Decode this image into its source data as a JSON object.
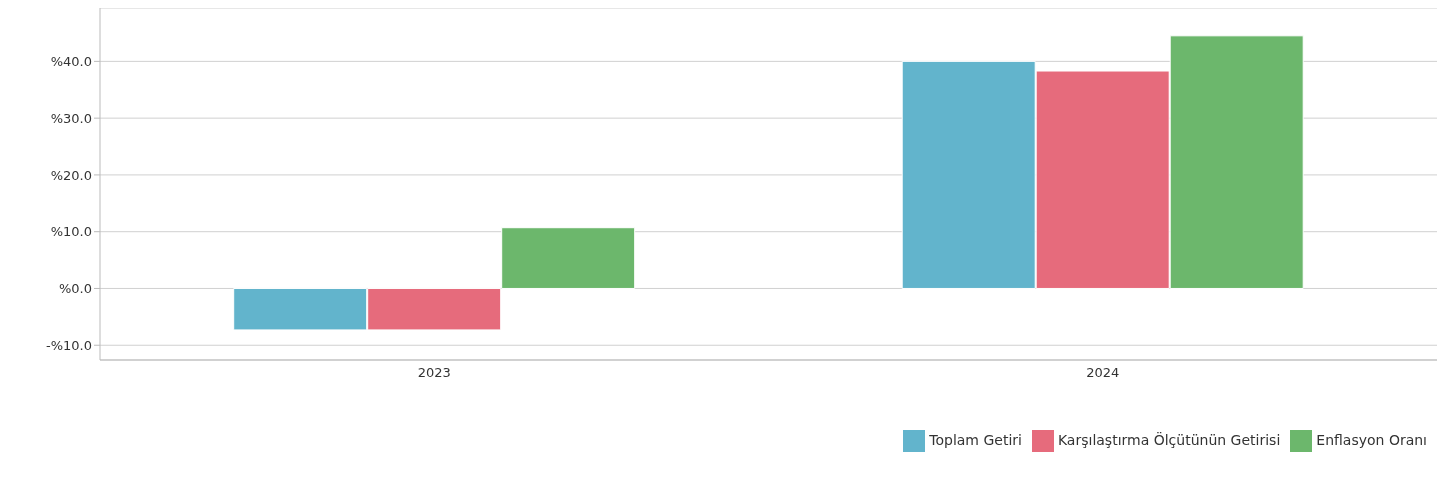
{
  "chart_data": {
    "type": "bar",
    "categories": [
      "2023",
      "2024"
    ],
    "series": [
      {
        "name": "Toplam Getiri",
        "color": "#62b4cc",
        "values": [
          -7.3,
          40.0
        ]
      },
      {
        "name": "Karşılaştırma Ölçütünün Getirisi",
        "color": "#e66b7c",
        "values": [
          -7.3,
          38.3
        ]
      },
      {
        "name": "Enflasyon Oranı",
        "color": "#6cb76c",
        "values": [
          10.7,
          44.5
        ]
      }
    ],
    "ylim": [
      -12.6,
      49.4
    ],
    "yticks": [
      {
        "value": -10,
        "label": "-%10.0"
      },
      {
        "value": 0,
        "label": "%0.0"
      },
      {
        "value": 10,
        "label": "%10.0"
      },
      {
        "value": 20,
        "label": "%20.0"
      },
      {
        "value": 30,
        "label": "%30.0"
      },
      {
        "value": 40,
        "label": "%40.0"
      }
    ],
    "grid": "y",
    "legend": "bottom right"
  }
}
